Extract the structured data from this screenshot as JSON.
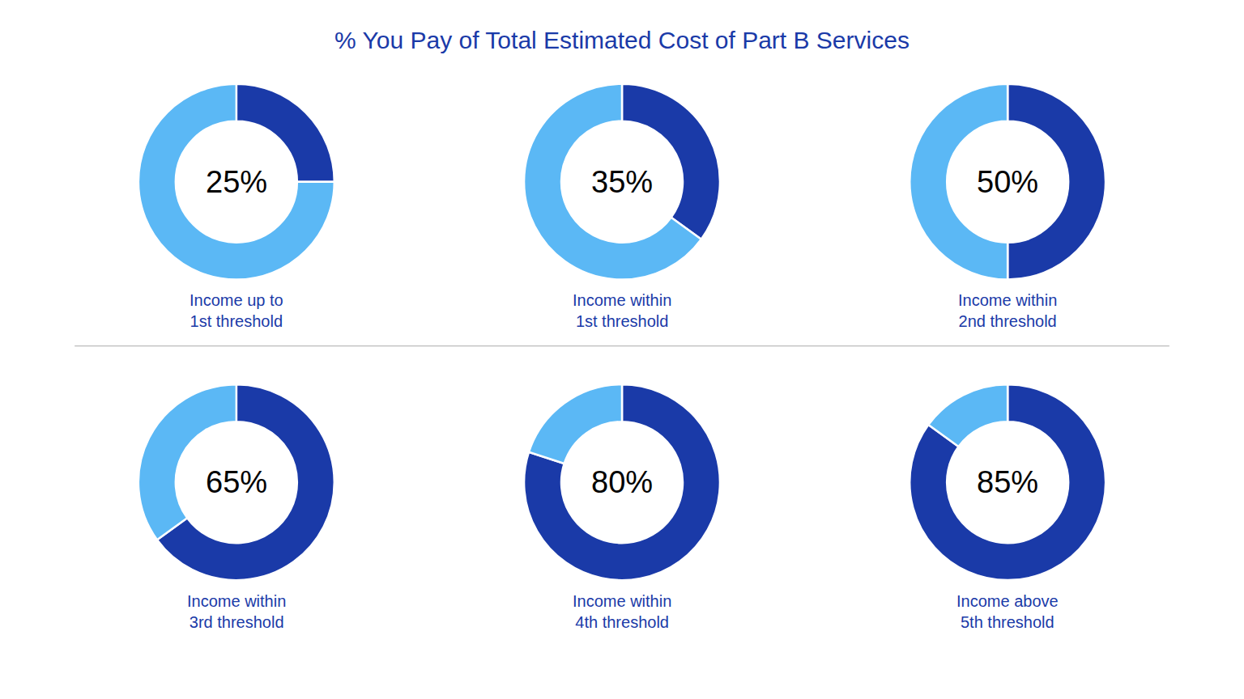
{
  "chart_data": {
    "type": "pie",
    "title": "% You Pay of Total Estimated Cost of Part B Services",
    "colors": [
      "#1a3aa8",
      "#5bb8f5"
    ],
    "series": [
      {
        "name": "Income up to\n1st threshold",
        "values": [
          25,
          75
        ],
        "value_labels": [
          "25%",
          null
        ]
      },
      {
        "name": "Income within\n1st threshold",
        "values": [
          35,
          65
        ],
        "value_labels": [
          "35%",
          null
        ]
      },
      {
        "name": "Income within\n2nd threshold",
        "values": [
          50,
          50
        ],
        "value_labels": [
          "50%",
          null
        ]
      },
      {
        "name": "Income within\n3rd threshold",
        "values": [
          65,
          35
        ],
        "value_labels": [
          "65%",
          null
        ]
      },
      {
        "name": "Income within\n4th threshold",
        "values": [
          80,
          20
        ],
        "value_labels": [
          "80%",
          null
        ]
      },
      {
        "name": "Income above\n5th threshold",
        "values": [
          85,
          15
        ],
        "value_labels": [
          "85%",
          null
        ]
      }
    ]
  }
}
